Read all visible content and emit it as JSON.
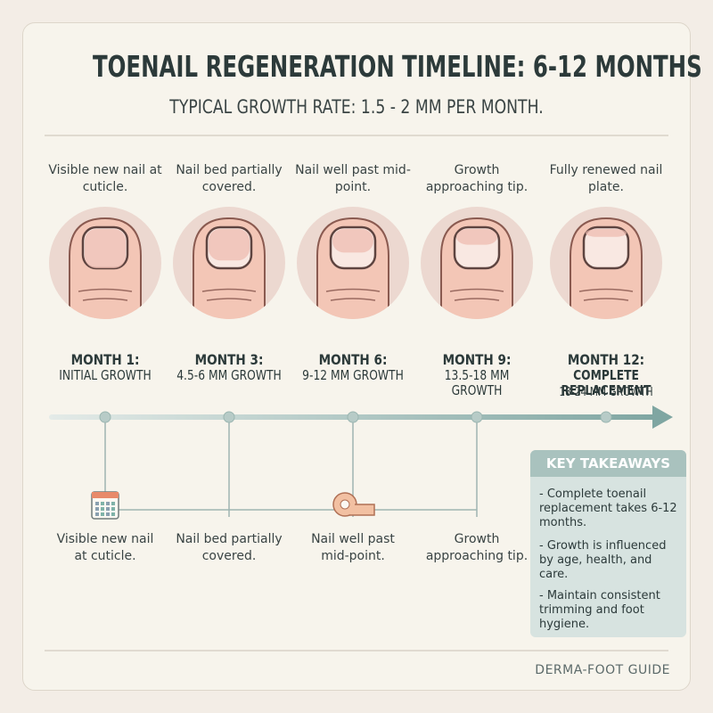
{
  "header": {
    "title": "TOENAIL REGENERATION TIMELINE: 6-12 MONTHS",
    "subtitle": "TYPICAL GROWTH RATE: 1.5 - 2 MM PER MONTH."
  },
  "stages": [
    {
      "caption": "Visible new nail at cuticle.",
      "month": "MONTH 1:",
      "growth": "INITIAL GROWTH"
    },
    {
      "caption": "Nail bed partially covered.",
      "month": "MONTH 3:",
      "growth": "4.5-6 MM GROWTH"
    },
    {
      "caption": "Nail well past mid-point.",
      "month": "MONTH 6:",
      "growth": "9-12 MM GROWTH"
    },
    {
      "caption": "Growth approaching tip.",
      "month": "MONTH 9:",
      "growth": "13.5-18 MM GROWTH"
    },
    {
      "caption": "Fully renewed nail plate.",
      "month": "MONTH 12:",
      "growth": "COMPLETE REPLACEMENT",
      "detail": "18-24 MM GROWTH"
    }
  ],
  "notes": [
    "Visible new nail at cuticle.",
    "Nail bed partially covered.",
    "Nail well past mid-point.",
    "Growth approaching tip."
  ],
  "takeaways": {
    "title": "KEY TAKEAWAYS",
    "items": [
      "- Complete toenail replacement takes 6-12 months.",
      "- Growth is influenced by age, health, and care.",
      "- Maintain consistent trimming and foot hygiene."
    ]
  },
  "footer": "DERMA-FOOT GUIDE"
}
